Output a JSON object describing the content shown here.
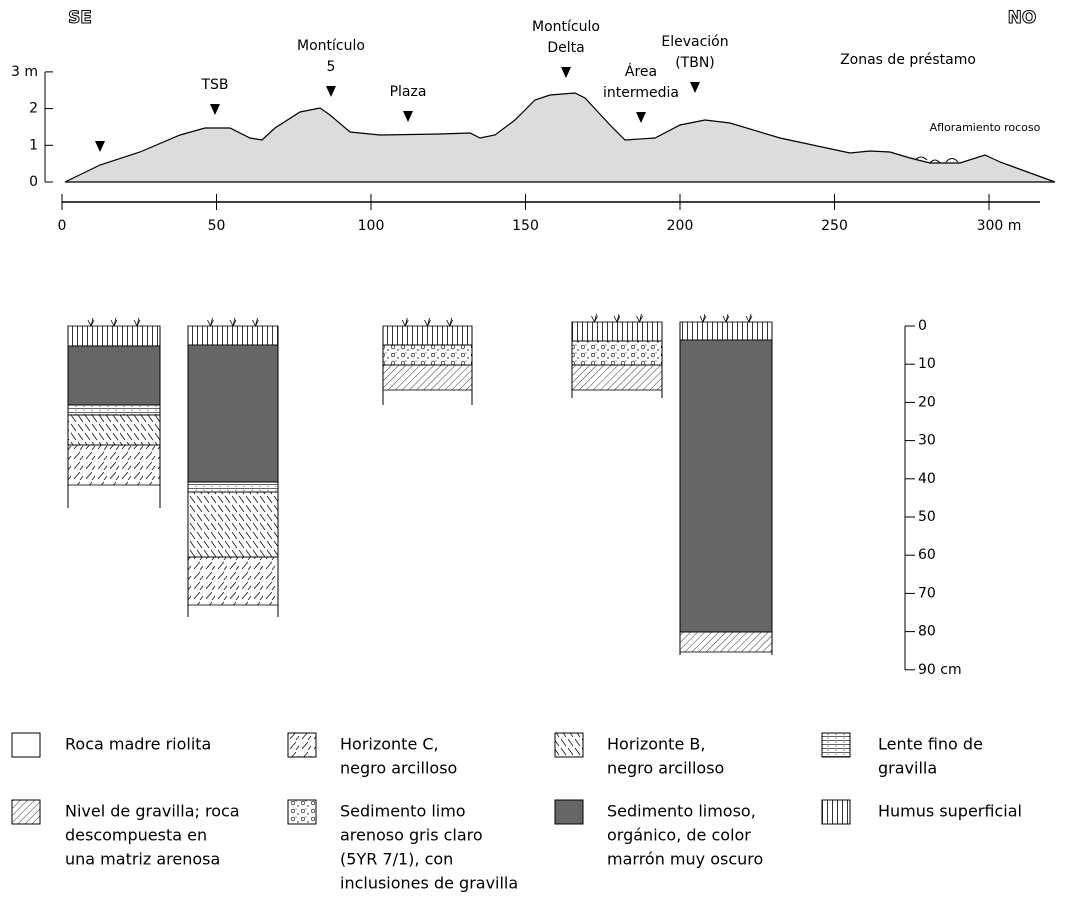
{
  "profile": {
    "direction_left": "SE",
    "direction_right": "NO",
    "sites": [
      {
        "lines": [
          "TSB"
        ]
      },
      {
        "lines": [
          "Montículo",
          "5"
        ]
      },
      {
        "lines": [
          "Plaza"
        ]
      },
      {
        "lines": [
          "Montículo",
          "Delta"
        ]
      },
      {
        "lines": [
          "Área",
          "intermedia"
        ]
      },
      {
        "lines": [
          "Elevación",
          "(TBN)"
        ]
      }
    ],
    "borrow_zones": "Zonas de préstamo",
    "outcrop": "Afloramiento rocoso",
    "x_ticks": [
      "0",
      "50",
      "100",
      "150",
      "200",
      "250",
      "300 m"
    ],
    "y_ticks": [
      "0",
      "1",
      "2",
      "3 m"
    ]
  },
  "depth_scale": [
    "0",
    "10",
    "20",
    "30",
    "40",
    "50",
    "60",
    "70",
    "80",
    "90 cm"
  ],
  "legend": [
    {
      "lines": [
        "Roca madre riolita"
      ]
    },
    {
      "lines": [
        "Horizonte C,",
        "negro arcilloso"
      ]
    },
    {
      "lines": [
        "Horizonte B,",
        "negro arcilloso"
      ]
    },
    {
      "lines": [
        "Lente fino de",
        "gravilla"
      ]
    },
    {
      "lines": [
        "Nivel de gravilla; roca",
        "descompuesta en",
        "una matriz arenosa"
      ]
    },
    {
      "lines": [
        "Sedimento limo",
        "arenoso gris claro",
        "(5YR 7/1), con",
        "inclusiones de gravilla"
      ]
    },
    {
      "lines": [
        "Sedimento limoso,",
        "orgánico, de color",
        "marrón muy oscuro"
      ]
    },
    {
      "lines": [
        "Humus superficial"
      ]
    }
  ]
}
